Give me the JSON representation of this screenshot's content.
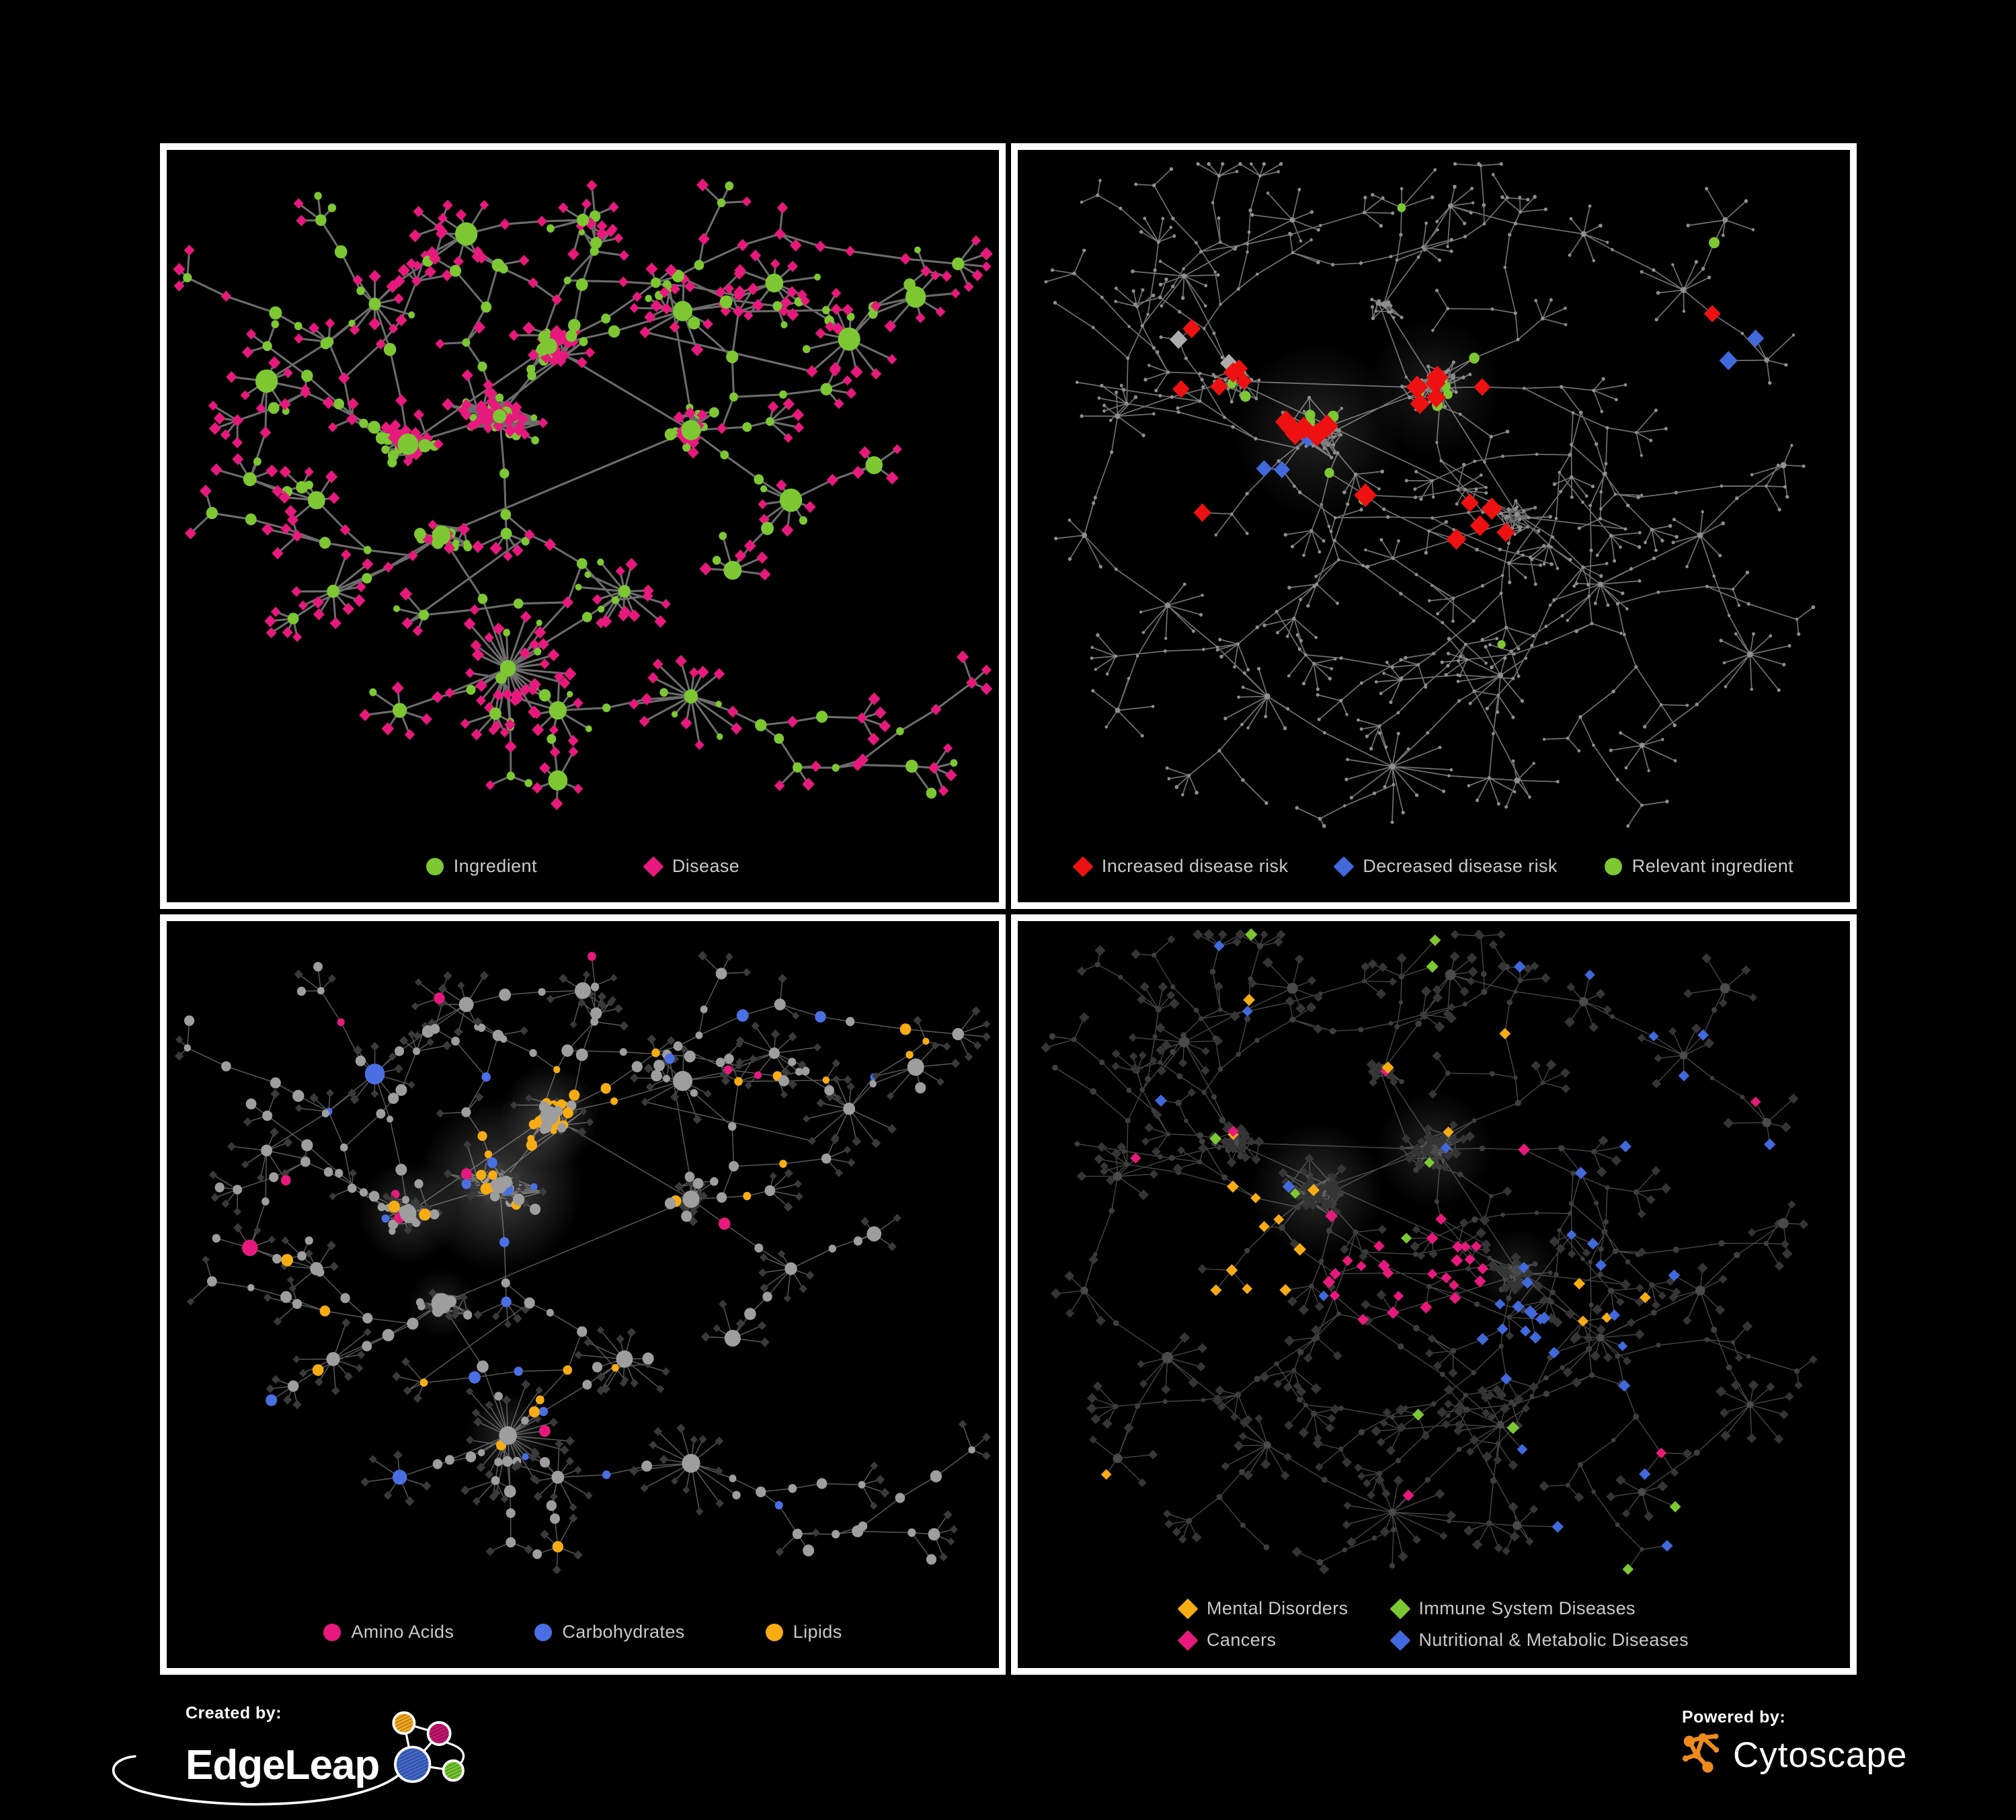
{
  "panels": [
    {
      "name": "ingredient-disease-network",
      "legend": [
        {
          "label": "Ingredient",
          "shape": "circle",
          "color": "#7DC832"
        },
        {
          "label": "Disease",
          "shape": "diamond",
          "color": "#E8197D"
        }
      ]
    },
    {
      "name": "disease-risk-network",
      "legend": [
        {
          "label": "Increased disease risk",
          "shape": "diamond",
          "color": "#EE1111"
        },
        {
          "label": "Decreased disease risk",
          "shape": "diamond",
          "color": "#4169DB"
        },
        {
          "label": "Relevant ingredient",
          "shape": "circle",
          "color": "#7DC832"
        }
      ]
    },
    {
      "name": "ingredient-classes-network",
      "legend": [
        {
          "label": "Amino Acids",
          "shape": "circle",
          "color": "#E8197D"
        },
        {
          "label": "Carbohydrates",
          "shape": "circle",
          "color": "#4A6FE3"
        },
        {
          "label": "Lipids",
          "shape": "circle",
          "color": "#F7AC14"
        }
      ]
    },
    {
      "name": "disease-classes-network",
      "legend": [
        {
          "label": "Mental Disorders",
          "shape": "diamond",
          "color": "#F7AC14"
        },
        {
          "label": "Immune System Diseases",
          "shape": "diamond",
          "color": "#7DC832"
        },
        {
          "label": "Cancers",
          "shape": "diamond",
          "color": "#E8197D"
        },
        {
          "label": "Nutritional & Metabolic Diseases",
          "shape": "diamond",
          "color": "#4169DB"
        }
      ]
    }
  ],
  "footer": {
    "created_by_label": "Created by:",
    "created_by_brand": "EdgeLeap",
    "powered_by_label": "Powered by:",
    "powered_by_brand": "Cytoscape"
  },
  "colors": {
    "background": "#000000",
    "panel_border": "#FFFFFF",
    "legend_text": "#C9C9C9",
    "edge_gray": "#6C6C6C",
    "edge_light": "#ADADAD",
    "node_gray": "#9E9E9E",
    "node_dark_diamond": "#3A3A3A",
    "node_dark_circle": "#3E3E3E",
    "node_dark_hub": "#4A4A4A",
    "tiny_dot": "#8E8E8E",
    "silver_diamond": "#ACACAC",
    "green": "#7DC832",
    "pink": "#E8197D",
    "red": "#EE1111",
    "blue": "#4169DB",
    "orange": "#F7AC14",
    "logo_orange_cytoscape": "#EF8B1E",
    "edgeleap_orange": "#F2A71F",
    "edgeleap_magenta": "#C4156C",
    "edgeleap_blue": "#4167C9",
    "edgeleap_green": "#74C62D"
  }
}
